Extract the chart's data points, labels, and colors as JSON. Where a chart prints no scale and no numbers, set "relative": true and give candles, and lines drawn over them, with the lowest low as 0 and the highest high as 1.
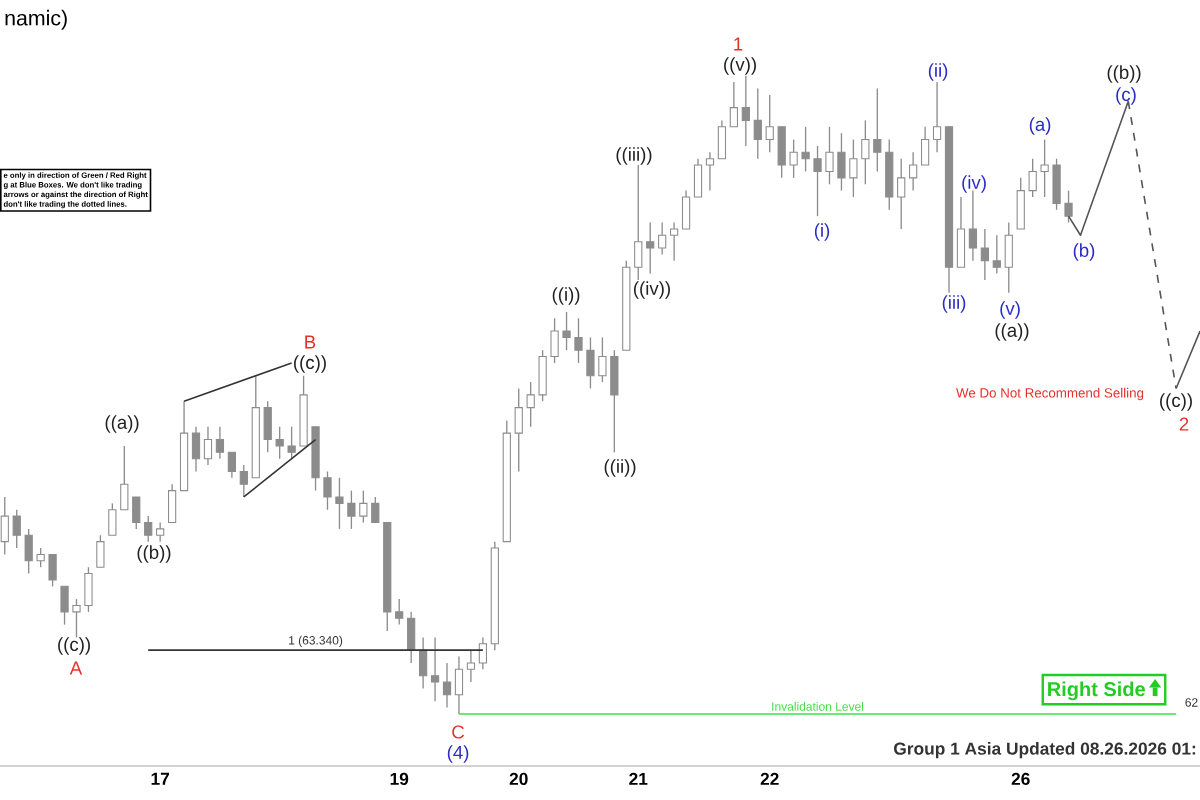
{
  "chart_data": {
    "type": "candlestick",
    "title": "namic)",
    "relative": true,
    "color": "#8c8c8c",
    "categories": [
      null,
      null,
      null,
      null,
      null,
      null,
      null,
      null,
      null,
      null,
      null,
      null,
      null,
      "17",
      null,
      null,
      null,
      null,
      null,
      null,
      null,
      null,
      null,
      null,
      null,
      null,
      null,
      null,
      null,
      null,
      null,
      null,
      null,
      "19",
      null,
      null,
      null,
      null,
      null,
      null,
      null,
      null,
      null,
      "20",
      null,
      null,
      null,
      null,
      null,
      null,
      null,
      null,
      null,
      "21",
      null,
      null,
      null,
      null,
      null,
      null,
      null,
      null,
      null,
      null,
      "22",
      null,
      null,
      null,
      null,
      null,
      null,
      null,
      null,
      null,
      null,
      null,
      null,
      null,
      null,
      null,
      null,
      null,
      null,
      null,
      null,
      "26",
      null,
      null,
      null,
      null,
      null,
      null,
      null,
      null,
      null,
      null,
      null,
      null,
      null,
      null,
      null
    ],
    "ohlc": [
      [
        0.27,
        0.34,
        0.25,
        0.31
      ],
      [
        0.31,
        0.32,
        0.26,
        0.28
      ],
      [
        0.28,
        0.29,
        0.22,
        0.24
      ],
      [
        0.24,
        0.26,
        0.23,
        0.25
      ],
      [
        0.25,
        0.25,
        0.2,
        0.21
      ],
      [
        0.2,
        0.2,
        0.14,
        0.16
      ],
      [
        0.16,
        0.18,
        0.12,
        0.17
      ],
      [
        0.17,
        0.23,
        0.16,
        0.22
      ],
      [
        0.23,
        0.28,
        0.23,
        0.27
      ],
      [
        0.28,
        0.33,
        0.28,
        0.32
      ],
      [
        0.32,
        0.42,
        0.32,
        0.36
      ],
      [
        0.34,
        0.34,
        0.29,
        0.3
      ],
      [
        0.3,
        0.31,
        0.27,
        0.28
      ],
      [
        0.28,
        0.3,
        0.27,
        0.29
      ],
      [
        0.3,
        0.36,
        0.3,
        0.35
      ],
      [
        0.35,
        0.49,
        0.35,
        0.44
      ],
      [
        0.44,
        0.45,
        0.38,
        0.4
      ],
      [
        0.4,
        0.45,
        0.39,
        0.43
      ],
      [
        0.43,
        0.45,
        0.4,
        0.41
      ],
      [
        0.41,
        0.41,
        0.37,
        0.38
      ],
      [
        0.38,
        0.39,
        0.34,
        0.36
      ],
      [
        0.37,
        0.53,
        0.37,
        0.48
      ],
      [
        0.48,
        0.49,
        0.41,
        0.43
      ],
      [
        0.43,
        0.45,
        0.4,
        0.42
      ],
      [
        0.42,
        0.45,
        0.4,
        0.41
      ],
      [
        0.42,
        0.53,
        0.42,
        0.5
      ],
      [
        0.45,
        0.45,
        0.35,
        0.37
      ],
      [
        0.37,
        0.38,
        0.32,
        0.34
      ],
      [
        0.34,
        0.37,
        0.29,
        0.33
      ],
      [
        0.33,
        0.35,
        0.29,
        0.31
      ],
      [
        0.31,
        0.35,
        0.3,
        0.33
      ],
      [
        0.33,
        0.34,
        0.3,
        0.3
      ],
      [
        0.3,
        0.3,
        0.13,
        0.16
      ],
      [
        0.16,
        0.18,
        0.14,
        0.15
      ],
      [
        0.15,
        0.16,
        0.08,
        0.1
      ],
      [
        0.1,
        0.12,
        0.04,
        0.06
      ],
      [
        0.06,
        0.12,
        0.02,
        0.05
      ],
      [
        0.05,
        0.08,
        0.01,
        0.03
      ],
      [
        0.03,
        0.09,
        0,
        0.07
      ],
      [
        0.07,
        0.1,
        0.05,
        0.08
      ],
      [
        0.08,
        0.12,
        0.07,
        0.11
      ],
      [
        0.11,
        0.27,
        0.1,
        0.26
      ],
      [
        0.27,
        0.46,
        0.27,
        0.44
      ],
      [
        0.44,
        0.51,
        0.38,
        0.48
      ],
      [
        0.48,
        0.52,
        0.45,
        0.5
      ],
      [
        0.5,
        0.57,
        0.49,
        0.56
      ],
      [
        0.56,
        0.62,
        0.55,
        0.6
      ],
      [
        0.6,
        0.63,
        0.57,
        0.59
      ],
      [
        0.59,
        0.62,
        0.55,
        0.57
      ],
      [
        0.57,
        0.59,
        0.51,
        0.53
      ],
      [
        0.53,
        0.59,
        0.52,
        0.56
      ],
      [
        0.56,
        0.57,
        0.41,
        0.5
      ],
      [
        0.57,
        0.71,
        0.57,
        0.7
      ],
      [
        0.7,
        0.86,
        0.68,
        0.74
      ],
      [
        0.74,
        0.77,
        0.69,
        0.73
      ],
      [
        0.73,
        0.77,
        0.72,
        0.75
      ],
      [
        0.75,
        0.77,
        0.71,
        0.76
      ],
      [
        0.76,
        0.82,
        0.76,
        0.81
      ],
      [
        0.81,
        0.87,
        0.81,
        0.86
      ],
      [
        0.86,
        0.88,
        0.82,
        0.87
      ],
      [
        0.87,
        0.93,
        0.87,
        0.92
      ],
      [
        0.92,
        0.99,
        0.92,
        0.95
      ],
      [
        0.95,
        1,
        0.89,
        0.93
      ],
      [
        0.93,
        0.98,
        0.87,
        0.9
      ],
      [
        0.9,
        0.97,
        0.88,
        0.92
      ],
      [
        0.92,
        0.92,
        0.84,
        0.86
      ],
      [
        0.86,
        0.9,
        0.84,
        0.88
      ],
      [
        0.88,
        0.92,
        0.85,
        0.87
      ],
      [
        0.87,
        0.89,
        0.78,
        0.85
      ],
      [
        0.85,
        0.92,
        0.83,
        0.88
      ],
      [
        0.88,
        0.91,
        0.82,
        0.84
      ],
      [
        0.84,
        0.9,
        0.81,
        0.87
      ],
      [
        0.87,
        0.93,
        0.83,
        0.9
      ],
      [
        0.9,
        0.98,
        0.85,
        0.88
      ],
      [
        0.88,
        0.9,
        0.79,
        0.81
      ],
      [
        0.81,
        0.87,
        0.76,
        0.84
      ],
      [
        0.84,
        0.88,
        0.82,
        0.86
      ],
      [
        0.86,
        0.92,
        0.86,
        0.9
      ],
      [
        0.9,
        0.99,
        0.88,
        0.92
      ],
      [
        0.92,
        0.92,
        0.66,
        0.7
      ],
      [
        0.7,
        0.81,
        0.7,
        0.76
      ],
      [
        0.76,
        0.82,
        0.71,
        0.73
      ],
      [
        0.73,
        0.76,
        0.68,
        0.71
      ],
      [
        0.71,
        0.75,
        0.69,
        0.7
      ],
      [
        0.7,
        0.77,
        0.66,
        0.75
      ],
      [
        0.76,
        0.84,
        0.76,
        0.82
      ],
      [
        0.82,
        0.87,
        0.81,
        0.85
      ],
      [
        0.85,
        0.9,
        0.81,
        0.86
      ],
      [
        0.86,
        0.87,
        0.79,
        0.8
      ],
      [
        0.8,
        0.82,
        0.77,
        0.78
      ],
      null,
      null,
      null,
      null,
      null,
      null,
      null,
      null,
      null,
      null,
      null
    ],
    "series": [
      {
        "type": "line",
        "color": "#333333",
        "values": [
          null,
          null,
          null,
          null,
          null,
          null,
          null,
          null,
          null,
          null,
          null,
          null,
          null,
          null,
          null,
          0.49,
          null,
          null,
          null,
          null,
          null,
          null,
          null,
          null,
          0.55,
          null,
          null,
          null,
          null,
          null,
          null,
          null,
          null,
          null,
          null,
          null,
          null,
          null,
          null,
          null,
          null,
          null,
          null,
          null,
          null,
          null,
          null,
          null,
          null,
          null,
          null,
          null,
          null,
          null,
          null,
          null,
          null,
          null,
          null,
          null,
          null,
          null,
          null,
          null,
          null,
          null,
          null,
          null,
          null,
          null,
          null,
          null,
          null,
          null,
          null,
          null,
          null,
          null,
          null,
          null,
          null,
          null,
          null,
          null,
          null,
          null,
          null,
          null,
          null,
          null,
          null,
          null,
          null,
          null,
          null,
          null,
          null,
          null,
          null,
          null,
          null
        ]
      },
      {
        "type": "line",
        "color": "#333333",
        "values": [
          null,
          null,
          null,
          null,
          null,
          null,
          null,
          null,
          null,
          null,
          null,
          null,
          null,
          null,
          null,
          null,
          null,
          null,
          null,
          null,
          0.34,
          null,
          null,
          null,
          null,
          null,
          0.43,
          null,
          null,
          null,
          null,
          null,
          null,
          null,
          null,
          null,
          null,
          null,
          null,
          null,
          null,
          null,
          null,
          null,
          null,
          null,
          null,
          null,
          null,
          null,
          null,
          null,
          null,
          null,
          null,
          null,
          null,
          null,
          null,
          null,
          null,
          null,
          null,
          null,
          null,
          null,
          null,
          null,
          null,
          null,
          null,
          null,
          null,
          null,
          null,
          null,
          null,
          null,
          null,
          null,
          null,
          null,
          null,
          null,
          null,
          null,
          null,
          null,
          null,
          null,
          null,
          null,
          null,
          null,
          null,
          null,
          null,
          null,
          null,
          null,
          null
        ]
      },
      {
        "type": "line",
        "name": "1 (63.340)",
        "color": "#333333",
        "values": [
          null,
          null,
          null,
          null,
          null,
          null,
          null,
          null,
          null,
          null,
          null,
          null,
          0.1,
          null,
          null,
          null,
          null,
          null,
          null,
          null,
          null,
          null,
          null,
          null,
          null,
          null,
          null,
          null,
          null,
          null,
          null,
          null,
          null,
          null,
          null,
          null,
          null,
          null,
          null,
          null,
          0.1,
          null,
          null,
          null,
          null,
          null,
          null,
          null,
          null,
          null,
          null,
          null,
          null,
          null,
          null,
          null,
          null,
          null,
          null,
          null,
          null,
          null,
          null,
          null,
          null,
          null,
          null,
          null,
          null,
          null,
          null,
          null,
          null,
          null,
          null,
          null,
          null,
          null,
          null,
          null,
          null,
          null,
          null,
          null,
          null,
          null,
          null,
          null,
          null,
          null,
          null,
          null,
          null,
          null,
          null,
          null,
          null,
          null,
          null,
          null,
          null
        ]
      },
      {
        "type": "line",
        "name": "Invalidation Level",
        "color": "#44dd44",
        "values": [
          null,
          null,
          null,
          null,
          null,
          null,
          null,
          null,
          null,
          null,
          null,
          null,
          null,
          null,
          null,
          null,
          null,
          null,
          null,
          null,
          null,
          null,
          null,
          null,
          null,
          null,
          null,
          null,
          null,
          null,
          null,
          null,
          null,
          null,
          null,
          null,
          null,
          null,
          0,
          null,
          null,
          null,
          null,
          null,
          null,
          null,
          null,
          null,
          null,
          null,
          null,
          null,
          null,
          null,
          null,
          null,
          null,
          null,
          null,
          null,
          null,
          null,
          null,
          null,
          null,
          null,
          null,
          null,
          null,
          null,
          null,
          null,
          null,
          null,
          null,
          null,
          null,
          null,
          null,
          null,
          null,
          null,
          null,
          null,
          null,
          null,
          null,
          null,
          null,
          null,
          null,
          null,
          null,
          null,
          null,
          null,
          null,
          null,
          0,
          null,
          null
        ]
      },
      {
        "type": "line",
        "color": "#555555",
        "values": [
          null,
          null,
          null,
          null,
          null,
          null,
          null,
          null,
          null,
          null,
          null,
          null,
          null,
          null,
          null,
          null,
          null,
          null,
          null,
          null,
          null,
          null,
          null,
          null,
          null,
          null,
          null,
          null,
          null,
          null,
          null,
          null,
          null,
          null,
          null,
          null,
          null,
          null,
          null,
          null,
          null,
          null,
          null,
          null,
          null,
          null,
          null,
          null,
          null,
          null,
          null,
          null,
          null,
          null,
          null,
          null,
          null,
          null,
          null,
          null,
          null,
          null,
          null,
          null,
          null,
          null,
          null,
          null,
          null,
          null,
          null,
          null,
          null,
          null,
          null,
          null,
          null,
          null,
          null,
          null,
          null,
          null,
          null,
          null,
          null,
          null,
          null,
          null,
          null,
          0.78,
          0.75,
          null,
          null,
          null,
          0.96,
          null,
          null,
          null,
          null,
          null,
          null
        ]
      },
      {
        "type": "line",
        "color": "#555555",
        "line_style": "dashed",
        "values": [
          null,
          null,
          null,
          null,
          null,
          null,
          null,
          null,
          null,
          null,
          null,
          null,
          null,
          null,
          null,
          null,
          null,
          null,
          null,
          null,
          null,
          null,
          null,
          null,
          null,
          null,
          null,
          null,
          null,
          null,
          null,
          null,
          null,
          null,
          null,
          null,
          null,
          null,
          null,
          null,
          null,
          null,
          null,
          null,
          null,
          null,
          null,
          null,
          null,
          null,
          null,
          null,
          null,
          null,
          null,
          null,
          null,
          null,
          null,
          null,
          null,
          null,
          null,
          null,
          null,
          null,
          null,
          null,
          null,
          null,
          null,
          null,
          null,
          null,
          null,
          null,
          null,
          null,
          null,
          null,
          null,
          null,
          null,
          null,
          null,
          null,
          null,
          null,
          null,
          null,
          null,
          null,
          null,
          null,
          0.96,
          null,
          null,
          null,
          0.51,
          null,
          null
        ]
      },
      {
        "type": "line",
        "color": "#555555",
        "values": [
          null,
          null,
          null,
          null,
          null,
          null,
          null,
          null,
          null,
          null,
          null,
          null,
          null,
          null,
          null,
          null,
          null,
          null,
          null,
          null,
          null,
          null,
          null,
          null,
          null,
          null,
          null,
          null,
          null,
          null,
          null,
          null,
          null,
          null,
          null,
          null,
          null,
          null,
          null,
          null,
          null,
          null,
          null,
          null,
          null,
          null,
          null,
          null,
          null,
          null,
          null,
          null,
          null,
          null,
          null,
          null,
          null,
          null,
          null,
          null,
          null,
          null,
          null,
          null,
          null,
          null,
          null,
          null,
          null,
          null,
          null,
          null,
          null,
          null,
          null,
          null,
          null,
          null,
          null,
          null,
          null,
          null,
          null,
          null,
          null,
          null,
          null,
          null,
          null,
          null,
          null,
          null,
          null,
          null,
          null,
          null,
          null,
          null,
          0.51,
          null,
          0.6
        ]
      }
    ],
    "annotations": [
      "We Do Not Recommend Selling",
      "Right Side",
      "62",
      "Group 1 Asia Updated 08.26.2026 01:",
      "e only in direction of Green / Red Right",
      "g at Blue Boxes. We don't like trading",
      "arrows or against the direction of Right",
      "don't like trading the dotted lines.",
      "((c))",
      "A",
      "((a))",
      "((b))",
      "((c))",
      "B",
      "C",
      "(4)",
      "((i))",
      "((ii))",
      "((iii))",
      "((iv))",
      "((v))",
      "1",
      "(i)",
      "(ii)",
      "(iii)",
      "(iv)",
      "(v)",
      "((a))",
      "(a)",
      "(b)",
      "(c)",
      "((b))",
      "((c))",
      "2"
    ]
  }
}
